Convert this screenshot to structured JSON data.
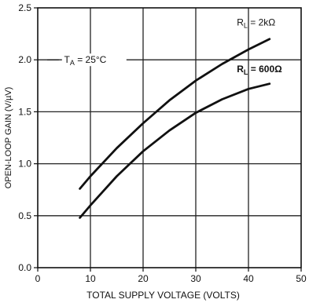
{
  "chart_data": {
    "type": "line",
    "title": "",
    "xlabel": "TOTAL SUPPLY VOLTAGE (VOLTS)",
    "ylabel": "OPEN-LOOP GAIN (V/µV)",
    "xlim": [
      0,
      50
    ],
    "ylim": [
      0.0,
      2.5
    ],
    "x_ticks": [
      0,
      10,
      20,
      30,
      40,
      50
    ],
    "x_tick_labels": [
      "0",
      "10",
      "20",
      "30",
      "40",
      "50"
    ],
    "y_ticks": [
      0.0,
      0.5,
      1.0,
      1.5,
      2.0,
      2.5
    ],
    "y_tick_labels": [
      "0.0",
      "0.5",
      "1.0",
      "1.5",
      "2.0",
      "2.5"
    ],
    "grid": true,
    "annotation": {
      "text": "T",
      "sub": "A",
      "rest": " = 25°C"
    },
    "series": [
      {
        "label_main": "R",
        "label_sub": "L",
        "label_rest": " = 2kΩ",
        "x": [
          8,
          10,
          15,
          20,
          25,
          30,
          35,
          40,
          44
        ],
        "y": [
          0.76,
          0.88,
          1.15,
          1.39,
          1.61,
          1.8,
          1.96,
          2.1,
          2.2
        ]
      },
      {
        "label_main": "R",
        "label_sub": "L",
        "label_rest": " = 600Ω",
        "x": [
          8,
          10,
          15,
          20,
          25,
          30,
          35,
          40,
          44
        ],
        "y": [
          0.48,
          0.6,
          0.88,
          1.12,
          1.32,
          1.49,
          1.62,
          1.72,
          1.77
        ]
      }
    ]
  }
}
